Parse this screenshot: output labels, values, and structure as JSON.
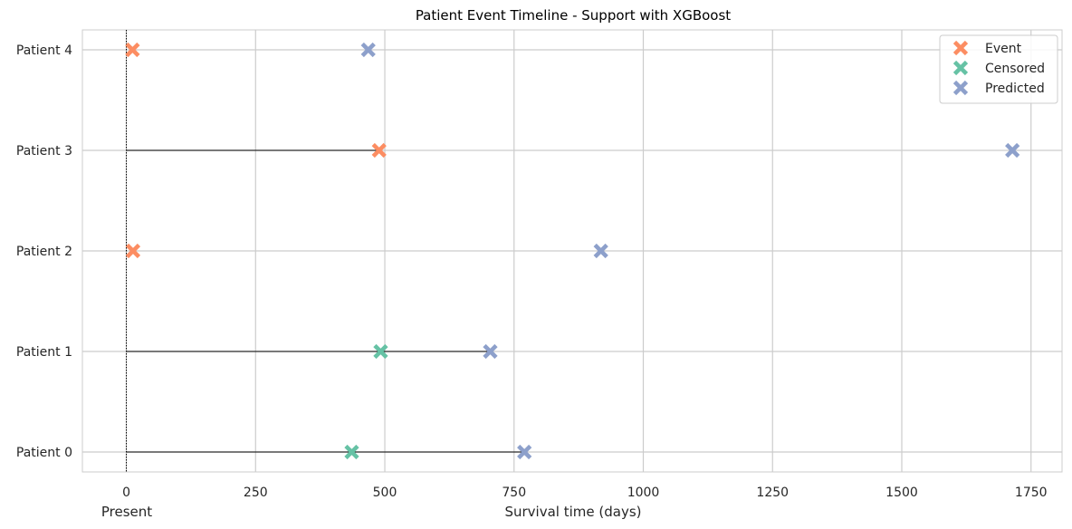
{
  "chart_data": {
    "type": "scatter",
    "title": "Patient Event Timeline - Support with XGBoost",
    "xlabel": "Survival time (days)",
    "x_annotation": "Present",
    "xlim": [
      -85,
      1810
    ],
    "xticks": [
      0,
      250,
      500,
      750,
      1000,
      1250,
      1500,
      1750
    ],
    "categories": [
      "Patient 0",
      "Patient 1",
      "Patient 2",
      "Patient 3",
      "Patient 4"
    ],
    "grid": true,
    "legend_position": "top-right",
    "colors": {
      "event": "#fc8d62",
      "censored": "#66c2a5",
      "predicted": "#8da0cb",
      "line": "#000000"
    },
    "legend": [
      "Event",
      "Censored",
      "Predicted"
    ],
    "patients": [
      {
        "label": "Patient 0",
        "observed_time": 436,
        "status": "censored",
        "predicted_time": 770,
        "line_to": 770
      },
      {
        "label": "Patient 1",
        "observed_time": 492,
        "status": "censored",
        "predicted_time": 704,
        "line_to": 704
      },
      {
        "label": "Patient 2",
        "observed_time": 13,
        "status": "event",
        "predicted_time": 918,
        "line_to": null
      },
      {
        "label": "Patient 3",
        "observed_time": 489,
        "status": "event",
        "predicted_time": 1714,
        "line_to": 489
      },
      {
        "label": "Patient 4",
        "observed_time": 12,
        "status": "event",
        "predicted_time": 468,
        "line_to": null
      }
    ]
  }
}
